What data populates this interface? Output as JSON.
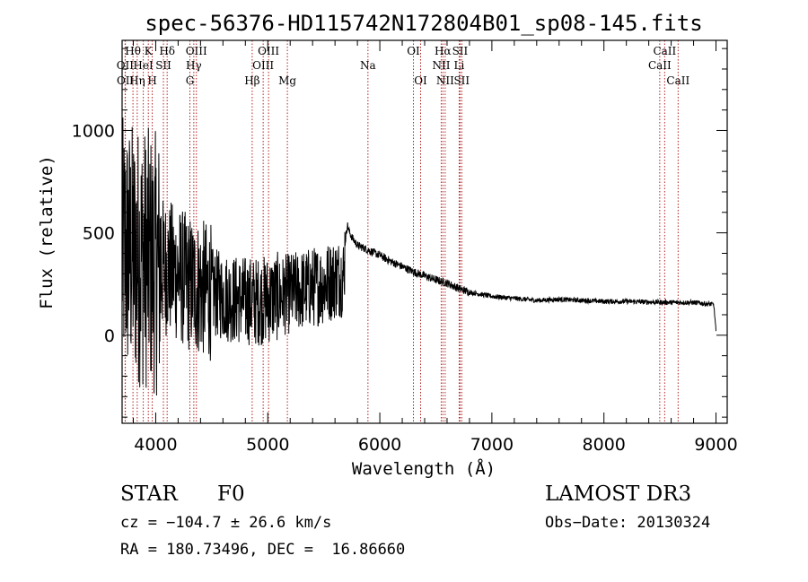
{
  "chart_data": {
    "type": "line",
    "title": "spec-56376-HD115742N172804B01_sp08-145.fits",
    "xlabel": "Wavelength (Å)",
    "ylabel": "Flux (relative)",
    "xlim": [
      3700,
      9100
    ],
    "ylim": [
      -430,
      1440
    ],
    "xticks": [
      4000,
      5000,
      6000,
      7000,
      8000,
      9000
    ],
    "yticks": [
      0,
      500,
      1000
    ],
    "line_color": "#000000",
    "marker_color": "#b22222",
    "continuum": [
      [
        3700,
        420
      ],
      [
        3800,
        400
      ],
      [
        3900,
        380
      ],
      [
        4000,
        350
      ],
      [
        4100,
        330
      ],
      [
        4200,
        300
      ],
      [
        4300,
        250
      ],
      [
        4400,
        230
      ],
      [
        4500,
        210
      ],
      [
        4600,
        190
      ],
      [
        4700,
        175
      ],
      [
        4800,
        170
      ],
      [
        4900,
        165
      ],
      [
        5000,
        175
      ],
      [
        5100,
        190
      ],
      [
        5200,
        205
      ],
      [
        5300,
        220
      ],
      [
        5400,
        235
      ],
      [
        5500,
        250
      ],
      [
        5600,
        275
      ],
      [
        5680,
        290
      ],
      [
        5690,
        450
      ],
      [
        5710,
        540
      ],
      [
        5730,
        500
      ],
      [
        5760,
        470
      ],
      [
        5800,
        440
      ],
      [
        5900,
        415
      ],
      [
        6000,
        390
      ],
      [
        6100,
        360
      ],
      [
        6200,
        335
      ],
      [
        6300,
        310
      ],
      [
        6400,
        290
      ],
      [
        6500,
        270
      ],
      [
        6600,
        255
      ],
      [
        6700,
        230
      ],
      [
        6800,
        210
      ],
      [
        6900,
        200
      ],
      [
        7000,
        190
      ],
      [
        7200,
        180
      ],
      [
        7400,
        170
      ],
      [
        7600,
        175
      ],
      [
        7800,
        170
      ],
      [
        8000,
        165
      ],
      [
        8200,
        165
      ],
      [
        8400,
        162
      ],
      [
        8600,
        160
      ],
      [
        8800,
        160
      ],
      [
        8980,
        150
      ],
      [
        9000,
        20
      ]
    ],
    "noise": [
      {
        "from": 3700,
        "to": 4050,
        "amplitude": 650
      },
      {
        "from": 4050,
        "to": 4500,
        "amplitude": 340
      },
      {
        "from": 4500,
        "to": 5100,
        "amplitude": 220
      },
      {
        "from": 5100,
        "to": 5690,
        "amplitude": 200
      },
      {
        "from": 5690,
        "to": 6800,
        "amplitude": 20
      },
      {
        "from": 6800,
        "to": 9000,
        "amplitude": 12
      }
    ],
    "spectral_lines": [
      {
        "label": "Hθ",
        "wave": 3797,
        "row": 0
      },
      {
        "label": "OII",
        "wave": 3727,
        "row": 1
      },
      {
        "label": "OII",
        "wave": 3729,
        "row": 2
      },
      {
        "label": "K",
        "wave": 3934,
        "row": 0
      },
      {
        "label": "HeI",
        "wave": 3889,
        "row": 1
      },
      {
        "label": "Hη",
        "wave": 3835,
        "row": 2
      },
      {
        "label": "Hδ",
        "wave": 4102,
        "row": 0
      },
      {
        "label": "SII",
        "wave": 4069,
        "row": 1
      },
      {
        "label": "H",
        "wave": 3969,
        "row": 2
      },
      {
        "label": "OIII",
        "wave": 4363,
        "row": 0
      },
      {
        "label": "Hγ",
        "wave": 4340,
        "row": 1
      },
      {
        "label": "G",
        "wave": 4305,
        "row": 2
      },
      {
        "label": "Hβ",
        "wave": 4861,
        "row": 2
      },
      {
        "label": "OIII",
        "wave": 5007,
        "row": 0
      },
      {
        "label": "OIII",
        "wave": 4959,
        "row": 1
      },
      {
        "label": "Mg",
        "wave": 5175,
        "row": 2
      },
      {
        "label": "Na",
        "wave": 5894,
        "row": 1
      },
      {
        "label": "OI",
        "wave": 6300,
        "row": 0
      },
      {
        "label": "OI",
        "wave": 6364,
        "row": 2
      },
      {
        "label": "Hα",
        "wave": 6563,
        "row": 0
      },
      {
        "label": "SII",
        "wave": 6716,
        "row": 0
      },
      {
        "label": "NII",
        "wave": 6548,
        "row": 1
      },
      {
        "label": "Li",
        "wave": 6708,
        "row": 1
      },
      {
        "label": "NII",
        "wave": 6583,
        "row": 2
      },
      {
        "label": "SII",
        "wave": 6731,
        "row": 2
      },
      {
        "label": "CaII",
        "wave": 8542,
        "row": 0
      },
      {
        "label": "CaII",
        "wave": 8498,
        "row": 1
      },
      {
        "label": "CaII",
        "wave": 8662,
        "row": 2
      }
    ]
  },
  "info": {
    "class": "STAR",
    "subclass": "F0",
    "survey": "LAMOST DR3",
    "cz": "cz = −104.7 ± 26.6 km/s",
    "obs_date": "Obs−Date: 20130324",
    "coords": "RA = 180.73496, DEC =  16.86660"
  }
}
